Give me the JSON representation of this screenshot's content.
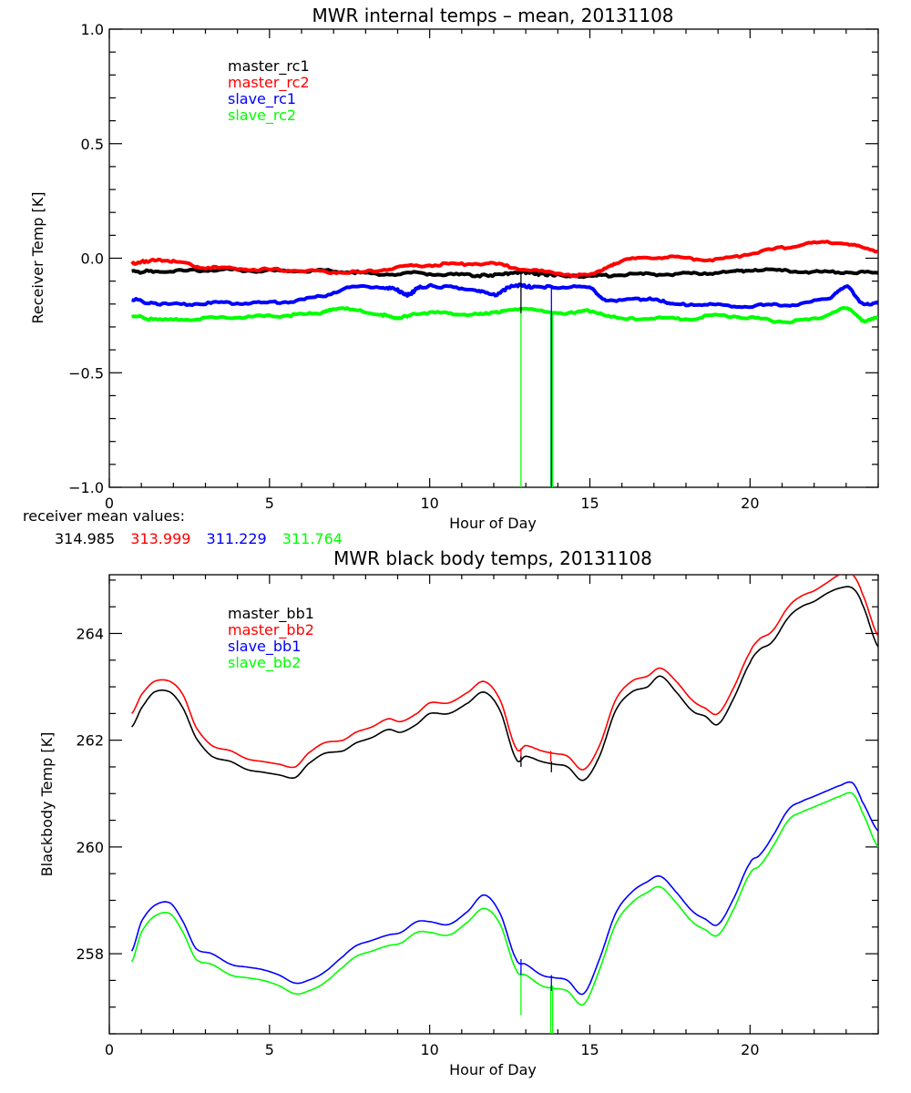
{
  "chart_data": [
    {
      "type": "line",
      "title": "MWR internal temps – mean, 20131108",
      "xlabel": "Hour of Day",
      "ylabel": "Receiver Temp [K]",
      "xlim": [
        0,
        24
      ],
      "ylim": [
        -1.0,
        1.0
      ],
      "xticks": [
        0,
        5,
        10,
        15,
        20
      ],
      "xtick_labels": [
        "0",
        "5",
        "10",
        "15",
        "20"
      ],
      "yticks": [
        1.0,
        0.5,
        0.0,
        -0.5,
        -1.0
      ],
      "ytick_labels": [
        "1.0",
        "0.5",
        "0.0",
        "−0.5",
        "−1.0"
      ],
      "grid": false,
      "legend_position": "top-left",
      "series": [
        {
          "name": "master_rc1",
          "color": "#000000",
          "x": [
            0.7,
            1.5,
            2.5,
            3.5,
            4.5,
            5.5,
            6.5,
            7.5,
            8.5,
            9.5,
            10.5,
            11.5,
            12.3,
            12.9,
            13.5,
            14.2,
            15,
            15.5,
            16.5,
            17.5,
            18.5,
            19.5,
            20,
            21,
            22,
            23,
            24
          ],
          "y": [
            -0.06,
            -0.055,
            -0.055,
            -0.05,
            -0.055,
            -0.055,
            -0.055,
            -0.06,
            -0.07,
            -0.065,
            -0.07,
            -0.075,
            -0.07,
            -0.06,
            -0.07,
            -0.075,
            -0.08,
            -0.075,
            -0.07,
            -0.07,
            -0.065,
            -0.06,
            -0.05,
            -0.055,
            -0.06,
            -0.06,
            -0.065
          ]
        },
        {
          "name": "master_rc2",
          "color": "#ff0000",
          "x": [
            0.7,
            1.3,
            2,
            3,
            4,
            5,
            6,
            7,
            8,
            9,
            10,
            11,
            12,
            13,
            14,
            15,
            15.5,
            16,
            17,
            18,
            19,
            20,
            21,
            22,
            23,
            23.5,
            24
          ],
          "y": [
            -0.025,
            -0.01,
            -0.015,
            -0.04,
            -0.045,
            -0.05,
            -0.055,
            -0.06,
            -0.06,
            -0.04,
            -0.03,
            -0.025,
            -0.025,
            -0.05,
            -0.065,
            -0.075,
            -0.04,
            -0.01,
            0.005,
            0.0,
            -0.005,
            0.02,
            0.045,
            0.065,
            0.065,
            0.045,
            0.03
          ]
        },
        {
          "name": "slave_rc1",
          "color": "#0000ff",
          "x": [
            0.7,
            1.5,
            2.5,
            3.5,
            4.5,
            5.5,
            6.5,
            7.5,
            8.5,
            9,
            9.3,
            9.7,
            10.5,
            11.5,
            12,
            12.6,
            13.2,
            14,
            15,
            15.5,
            16.5,
            17,
            17.5,
            18.5,
            19.5,
            20.5,
            21.5,
            22.5,
            23,
            23.5,
            24
          ],
          "y": [
            -0.18,
            -0.2,
            -0.2,
            -0.195,
            -0.195,
            -0.19,
            -0.17,
            -0.13,
            -0.125,
            -0.14,
            -0.16,
            -0.125,
            -0.125,
            -0.14,
            -0.16,
            -0.12,
            -0.125,
            -0.125,
            -0.13,
            -0.18,
            -0.18,
            -0.175,
            -0.2,
            -0.2,
            -0.21,
            -0.205,
            -0.2,
            -0.17,
            -0.125,
            -0.2,
            -0.19
          ]
        },
        {
          "name": "slave_rc2",
          "color": "#00ff00",
          "x": [
            0.7,
            1.5,
            2.5,
            3.5,
            4.5,
            5.5,
            6.5,
            7,
            7.5,
            8.5,
            9,
            9.5,
            10.5,
            11.5,
            12,
            12.5,
            13.5,
            14.5,
            15,
            16,
            17,
            18,
            19,
            20,
            21,
            22,
            23,
            23.5,
            24
          ],
          "y": [
            -0.25,
            -0.27,
            -0.265,
            -0.26,
            -0.255,
            -0.25,
            -0.24,
            -0.22,
            -0.225,
            -0.245,
            -0.265,
            -0.24,
            -0.24,
            -0.245,
            -0.24,
            -0.22,
            -0.23,
            -0.24,
            -0.23,
            -0.265,
            -0.26,
            -0.265,
            -0.25,
            -0.26,
            -0.275,
            -0.265,
            -0.22,
            -0.27,
            -0.255
          ]
        }
      ],
      "spikes": [
        {
          "color": "#00ff00",
          "x": 12.85,
          "y_from": -0.22,
          "y_to": -1.0
        },
        {
          "color": "#00ff00",
          "x": 13.78,
          "y_from": -0.23,
          "y_to": -1.0
        },
        {
          "color": "#00ff00",
          "x": 13.84,
          "y_from": -0.23,
          "y_to": -1.0
        },
        {
          "color": "#0000ff",
          "x": 13.8,
          "y_from": -0.12,
          "y_to": -1.0
        },
        {
          "color": "#000000",
          "x": 12.85,
          "y_from": -0.06,
          "y_to": -0.24
        }
      ]
    },
    {
      "type": "line",
      "title": "MWR black body temps, 20131108",
      "xlabel": "Hour of Day",
      "ylabel": "Blackbody Temp [K]",
      "xlim": [
        0,
        24
      ],
      "ylim": [
        256.5,
        265.1
      ],
      "xticks": [
        0,
        5,
        10,
        15,
        20
      ],
      "xtick_labels": [
        "0",
        "5",
        "10",
        "15",
        "20"
      ],
      "yticks": [
        264,
        262,
        260,
        258
      ],
      "ytick_labels": [
        "264",
        "262",
        "260",
        "258"
      ],
      "grid": false,
      "legend_position": "top-left",
      "series": [
        {
          "name": "master_bb1",
          "color": "#000000",
          "x": [
            0.7,
            1,
            1.4,
            1.9,
            2.3,
            2.7,
            3.2,
            3.8,
            4.3,
            4.8,
            5.3,
            5.8,
            6.2,
            6.7,
            7.3,
            7.7,
            8.2,
            8.7,
            9.1,
            9.6,
            10,
            10.6,
            11.2,
            11.7,
            12.2,
            12.7,
            13,
            13.5,
            13.9,
            14.3,
            14.8,
            15.3,
            15.8,
            16.3,
            16.8,
            17.2,
            17.7,
            18.2,
            18.6,
            19,
            19.5,
            20,
            20.3,
            20.7,
            21.2,
            21.6,
            22,
            22.4,
            22.8,
            23.2,
            23.5,
            24
          ],
          "y": [
            262.25,
            262.6,
            262.9,
            262.9,
            262.6,
            262.05,
            261.7,
            261.6,
            261.45,
            261.4,
            261.35,
            261.3,
            261.55,
            261.75,
            261.8,
            261.95,
            262.05,
            262.2,
            262.15,
            262.3,
            262.5,
            262.5,
            262.7,
            262.9,
            262.55,
            261.65,
            261.7,
            261.6,
            261.55,
            261.5,
            261.25,
            261.7,
            262.55,
            262.9,
            263.0,
            263.2,
            262.9,
            262.55,
            262.45,
            262.3,
            262.8,
            263.45,
            263.7,
            263.85,
            264.3,
            264.5,
            264.6,
            264.75,
            264.85,
            264.85,
            264.55,
            263.75
          ]
        },
        {
          "name": "master_bb2",
          "color": "#ff0000",
          "x": [
            0.7,
            1,
            1.4,
            1.9,
            2.3,
            2.7,
            3.2,
            3.8,
            4.3,
            4.8,
            5.3,
            5.8,
            6.2,
            6.7,
            7.3,
            7.7,
            8.2,
            8.7,
            9.1,
            9.6,
            10,
            10.6,
            11.2,
            11.7,
            12.2,
            12.7,
            13,
            13.5,
            13.9,
            14.3,
            14.8,
            15.3,
            15.8,
            16.3,
            16.8,
            17.2,
            17.7,
            18.2,
            18.6,
            19,
            19.5,
            20,
            20.3,
            20.7,
            21.2,
            21.6,
            22,
            22.4,
            22.8,
            23.2,
            23.5,
            24
          ],
          "y": [
            262.5,
            262.85,
            263.1,
            263.1,
            262.85,
            262.25,
            261.9,
            261.8,
            261.65,
            261.6,
            261.55,
            261.5,
            261.75,
            261.95,
            262.0,
            262.15,
            262.25,
            262.4,
            262.35,
            262.5,
            262.7,
            262.7,
            262.9,
            263.1,
            262.75,
            261.85,
            261.9,
            261.8,
            261.75,
            261.7,
            261.45,
            261.9,
            262.75,
            263.1,
            263.2,
            263.35,
            263.1,
            262.75,
            262.6,
            262.5,
            263.0,
            263.65,
            263.9,
            264.05,
            264.5,
            264.7,
            264.8,
            264.95,
            265.1,
            265.1,
            264.75,
            263.95
          ]
        },
        {
          "name": "slave_bb1",
          "color": "#0000ff",
          "x": [
            0.7,
            1,
            1.4,
            1.9,
            2.3,
            2.7,
            3.2,
            3.8,
            4.3,
            4.8,
            5.3,
            5.8,
            6.2,
            6.7,
            7.3,
            7.7,
            8.2,
            8.7,
            9.1,
            9.6,
            10,
            10.6,
            11.2,
            11.7,
            12.2,
            12.7,
            13,
            13.5,
            13.9,
            14.3,
            14.8,
            15.3,
            15.8,
            16.3,
            16.8,
            17.2,
            17.7,
            18.2,
            18.6,
            19,
            19.5,
            20,
            20.3,
            20.7,
            21.2,
            21.6,
            22,
            22.4,
            22.8,
            23.2,
            23.5,
            24
          ],
          "y": [
            258.05,
            258.6,
            258.9,
            258.95,
            258.6,
            258.1,
            258.0,
            257.8,
            257.75,
            257.7,
            257.6,
            257.45,
            257.5,
            257.65,
            257.95,
            258.15,
            258.25,
            258.35,
            258.4,
            258.6,
            258.6,
            258.55,
            258.8,
            259.1,
            258.75,
            257.9,
            257.8,
            257.6,
            257.55,
            257.5,
            257.25,
            257.9,
            258.75,
            259.15,
            259.35,
            259.45,
            259.15,
            258.8,
            258.65,
            258.55,
            259.05,
            259.7,
            259.85,
            260.2,
            260.7,
            260.85,
            260.95,
            261.05,
            261.15,
            261.2,
            260.85,
            260.3
          ]
        },
        {
          "name": "slave_bb2",
          "color": "#00ff00",
          "x": [
            0.7,
            1,
            1.4,
            1.9,
            2.3,
            2.7,
            3.2,
            3.8,
            4.3,
            4.8,
            5.3,
            5.8,
            6.2,
            6.7,
            7.3,
            7.7,
            8.2,
            8.7,
            9.1,
            9.6,
            10,
            10.6,
            11.2,
            11.7,
            12.2,
            12.7,
            13,
            13.5,
            13.9,
            14.3,
            14.8,
            15.3,
            15.8,
            16.3,
            16.8,
            17.2,
            17.7,
            18.2,
            18.6,
            19,
            19.5,
            20,
            20.3,
            20.7,
            21.2,
            21.6,
            22,
            22.4,
            22.8,
            23.2,
            23.5,
            24
          ],
          "y": [
            257.85,
            258.4,
            258.7,
            258.75,
            258.4,
            257.9,
            257.8,
            257.6,
            257.55,
            257.5,
            257.4,
            257.25,
            257.3,
            257.45,
            257.75,
            257.95,
            258.05,
            258.15,
            258.2,
            258.4,
            258.4,
            258.35,
            258.6,
            258.85,
            258.55,
            257.7,
            257.6,
            257.4,
            257.35,
            257.3,
            257.05,
            257.7,
            258.55,
            258.95,
            259.15,
            259.25,
            258.95,
            258.6,
            258.45,
            258.35,
            258.85,
            259.5,
            259.65,
            260.0,
            260.5,
            260.65,
            260.75,
            260.85,
            260.95,
            261.0,
            260.65,
            260.0
          ]
        }
      ],
      "spikes": [
        {
          "color": "#00ff00",
          "x": 12.85,
          "y_from": 257.7,
          "y_to": 256.85
        },
        {
          "color": "#00ff00",
          "x": 13.78,
          "y_from": 257.4,
          "y_to": 256.5
        },
        {
          "color": "#00ff00",
          "x": 13.84,
          "y_from": 257.4,
          "y_to": 256.5
        },
        {
          "color": "#0000ff",
          "x": 12.85,
          "y_from": 257.9,
          "y_to": 257.6
        },
        {
          "color": "#0000ff",
          "x": 13.8,
          "y_from": 257.6,
          "y_to": 257.3
        },
        {
          "color": "#ff0000",
          "x": 12.85,
          "y_from": 261.85,
          "y_to": 261.65
        },
        {
          "color": "#ff0000",
          "x": 13.78,
          "y_from": 261.8,
          "y_to": 261.6
        },
        {
          "color": "#000000",
          "x": 12.85,
          "y_from": 261.7,
          "y_to": 261.5
        },
        {
          "color": "#000000",
          "x": 13.8,
          "y_from": 261.6,
          "y_to": 261.4
        }
      ]
    }
  ],
  "receiver_means": {
    "label": "receiver mean values:",
    "values": [
      {
        "text": "314.985",
        "color": "#000000"
      },
      {
        "text": "313.999",
        "color": "#ff0000"
      },
      {
        "text": "311.229",
        "color": "#0000ff"
      },
      {
        "text": "311.764",
        "color": "#00ff00"
      }
    ]
  }
}
